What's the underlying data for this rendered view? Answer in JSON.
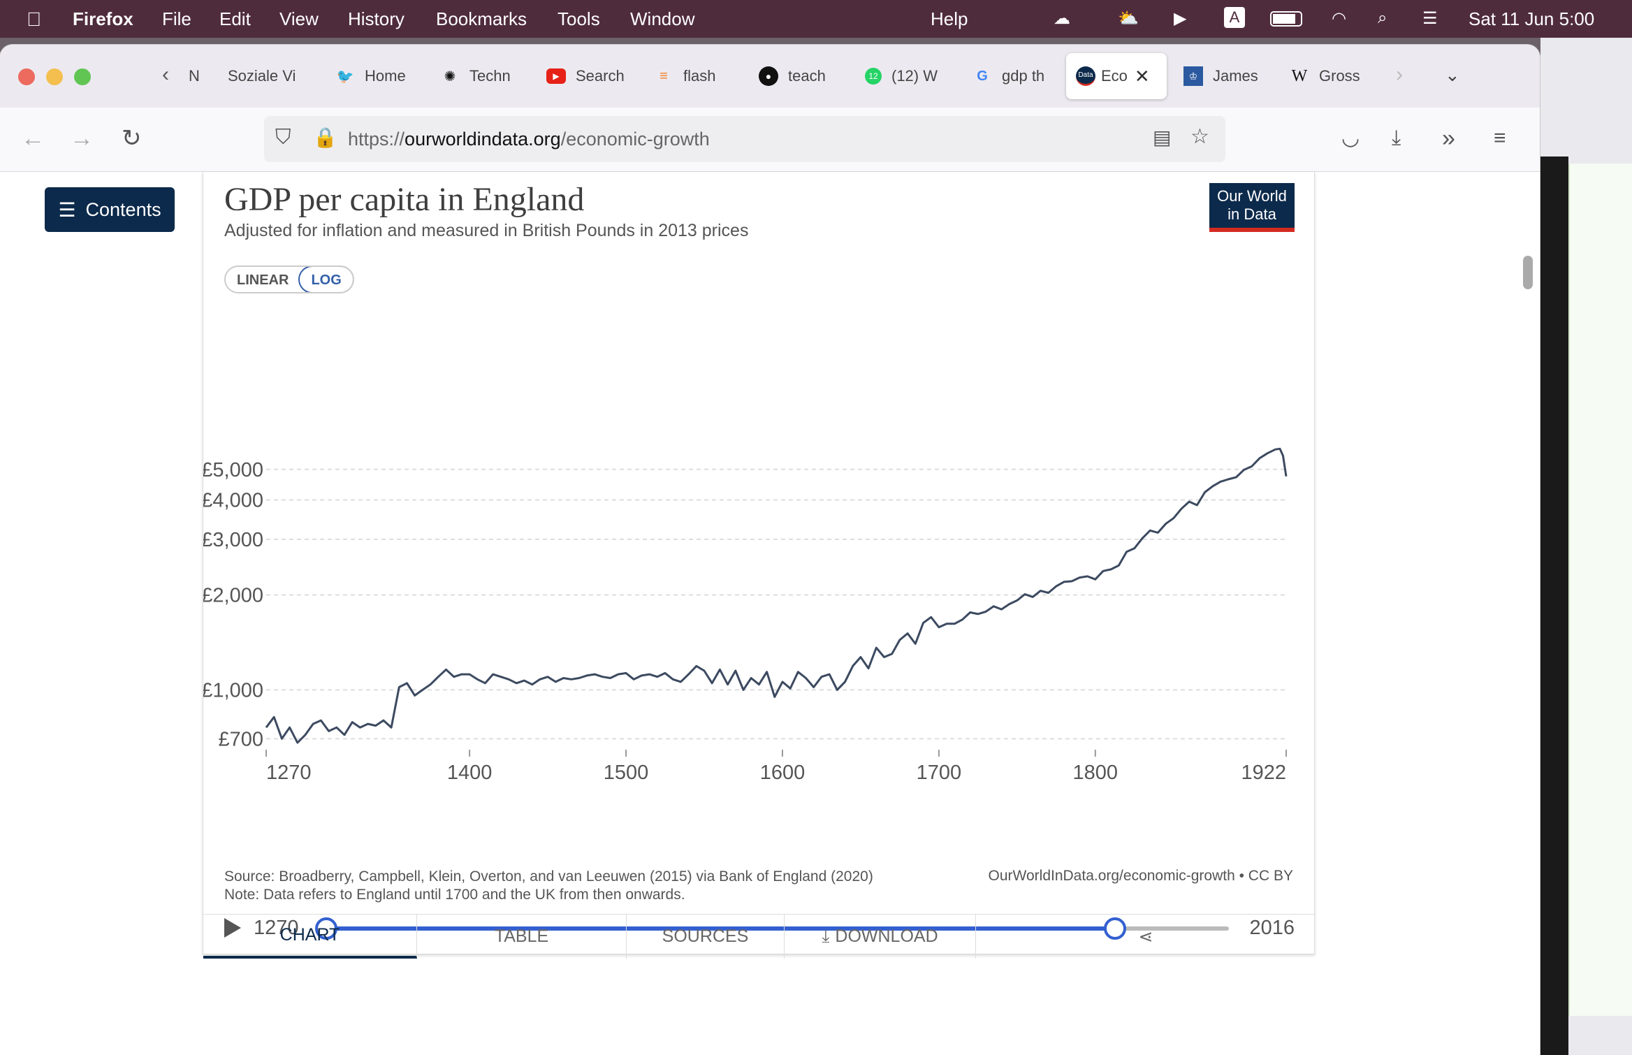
{
  "menubar": {
    "app": "Firefox",
    "items": [
      "File",
      "Edit",
      "View",
      "History",
      "Bookmarks",
      "Tools",
      "Window",
      "Help"
    ],
    "clock": "Sat 11 Jun  5:00"
  },
  "tabs": [
    {
      "label": "N",
      "icon": "n-icon"
    },
    {
      "label": "Soziale Vi",
      "icon": ""
    },
    {
      "label": "Home",
      "icon": "twitter-icon"
    },
    {
      "label": "Techn",
      "icon": "openai-icon"
    },
    {
      "label": "Search",
      "icon": "youtube-icon"
    },
    {
      "label": "flash",
      "icon": "stackoverflow-icon"
    },
    {
      "label": "teach",
      "icon": "github-icon"
    },
    {
      "label": "(12) W",
      "icon": "whatsapp-icon"
    },
    {
      "label": "gdp th",
      "icon": "google-icon"
    },
    {
      "label": "Eco",
      "icon": "owid-icon",
      "active": true
    },
    {
      "label": "James",
      "icon": "crest-icon"
    },
    {
      "label": "Gross",
      "icon": "wikipedia-icon"
    }
  ],
  "url": {
    "prefix": "https://",
    "domain": "ourworldindata.org",
    "path": "/economic-growth"
  },
  "page": {
    "contents_label": "Contents",
    "logo_line1": "Our World",
    "logo_line2": "in Data"
  },
  "scale_toggle": {
    "linear": "LINEAR",
    "log": "LOG",
    "selected": "LOG"
  },
  "chart_data": {
    "type": "line",
    "title": "GDP per capita in England",
    "subtitle": "Adjusted for inflation and measured in British Pounds in 2013 prices",
    "y_scale": "log",
    "ylim": [
      680,
      6000
    ],
    "xlim": [
      1270,
      1922
    ],
    "x_ticks": [
      "1270",
      "1400",
      "1500",
      "1600",
      "1700",
      "1800",
      "1922"
    ],
    "y_ticks": [
      {
        "label": "£700",
        "value": 700
      },
      {
        "label": "£1,000",
        "value": 1000
      },
      {
        "label": "£2,000",
        "value": 2000
      },
      {
        "label": "£3,000",
        "value": 3000
      },
      {
        "label": "£4,000",
        "value": 4000
      },
      {
        "label": "£5,000",
        "value": 5000
      }
    ],
    "grid": true,
    "series": [
      {
        "color": "#3c4a60",
        "x": [
          1270,
          1275,
          1280,
          1285,
          1290,
          1295,
          1300,
          1305,
          1310,
          1315,
          1320,
          1325,
          1330,
          1335,
          1340,
          1345,
          1350,
          1355,
          1360,
          1365,
          1370,
          1375,
          1380,
          1385,
          1390,
          1395,
          1400,
          1405,
          1410,
          1415,
          1420,
          1425,
          1430,
          1435,
          1440,
          1445,
          1450,
          1455,
          1460,
          1465,
          1470,
          1475,
          1480,
          1485,
          1490,
          1495,
          1500,
          1505,
          1510,
          1515,
          1520,
          1525,
          1530,
          1535,
          1540,
          1545,
          1550,
          1555,
          1560,
          1565,
          1570,
          1575,
          1580,
          1585,
          1590,
          1595,
          1600,
          1605,
          1610,
          1615,
          1620,
          1625,
          1630,
          1635,
          1640,
          1645,
          1650,
          1655,
          1660,
          1665,
          1670,
          1675,
          1680,
          1685,
          1690,
          1695,
          1700,
          1705,
          1710,
          1715,
          1720,
          1725,
          1730,
          1735,
          1740,
          1745,
          1750,
          1755,
          1760,
          1765,
          1770,
          1775,
          1780,
          1785,
          1790,
          1795,
          1800,
          1805,
          1810,
          1815,
          1820,
          1825,
          1830,
          1835,
          1840,
          1845,
          1850,
          1855,
          1860,
          1865,
          1870,
          1875,
          1880,
          1885,
          1890,
          1895,
          1900,
          1905,
          1910,
          1915,
          1918,
          1920,
          1922
        ],
        "values": [
          760,
          820,
          700,
          760,
          680,
          720,
          780,
          800,
          740,
          760,
          720,
          790,
          760,
          780,
          770,
          800,
          760,
          1020,
          1050,
          960,
          1000,
          1040,
          1100,
          1160,
          1100,
          1120,
          1120,
          1080,
          1050,
          1120,
          1100,
          1080,
          1050,
          1070,
          1040,
          1080,
          1100,
          1060,
          1090,
          1080,
          1090,
          1110,
          1120,
          1100,
          1090,
          1120,
          1130,
          1080,
          1110,
          1120,
          1100,
          1130,
          1080,
          1060,
          1120,
          1190,
          1150,
          1050,
          1160,
          1040,
          1150,
          1000,
          1090,
          1040,
          1140,
          950,
          1060,
          1010,
          1140,
          1090,
          1020,
          1100,
          1120,
          1000,
          1060,
          1190,
          1270,
          1170,
          1360,
          1270,
          1300,
          1440,
          1510,
          1400,
          1630,
          1700,
          1580,
          1620,
          1620,
          1670,
          1760,
          1740,
          1770,
          1840,
          1800,
          1870,
          1920,
          2010,
          1970,
          2060,
          2030,
          2130,
          2200,
          2210,
          2270,
          2290,
          2240,
          2380,
          2410,
          2480,
          2740,
          2810,
          3020,
          3200,
          3150,
          3360,
          3500,
          3750,
          3950,
          3850,
          4230,
          4420,
          4570,
          4650,
          4720,
          4980,
          5110,
          5420,
          5620,
          5780,
          5810,
          5520,
          4750
        ]
      }
    ],
    "source": "Source: Broadberry, Campbell, Klein, Overton, and van Leeuwen (2015) via Bank of England (2020)",
    "note": "Note: Data refers to England until 1700 and the UK from then onwards.",
    "credit": "OurWorldInData.org/economic-growth • CC BY"
  },
  "timeline": {
    "start": "1270",
    "end": "2016",
    "range_start": 1270,
    "range_end": 1922,
    "min": 1270,
    "max": 2016
  },
  "bottom_tabs": {
    "chart": "CHART",
    "table": "TABLE",
    "sources": "SOURCES",
    "download": "DOWNLOAD"
  }
}
